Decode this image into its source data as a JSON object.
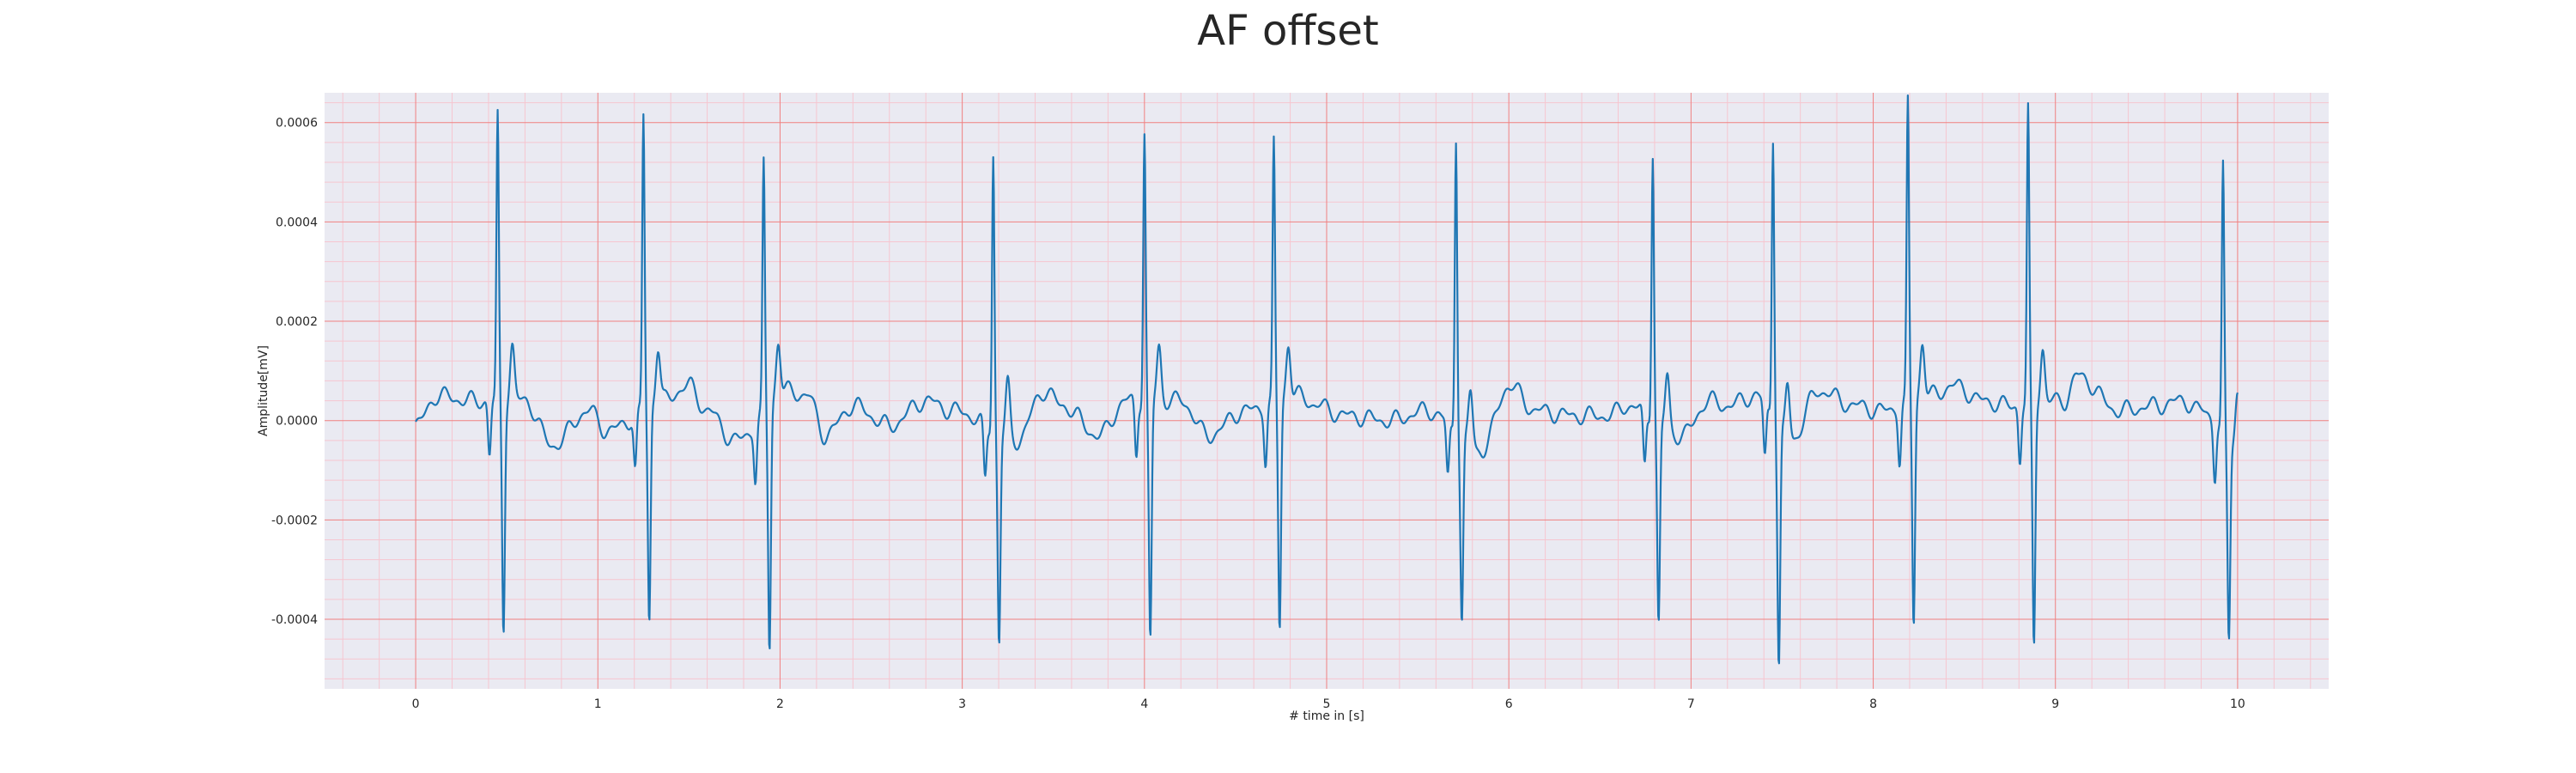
{
  "chart_data": {
    "type": "line",
    "title": "AF offset",
    "xlabel": "# time in [s]",
    "ylabel": "Amplitude[mV]",
    "xlim": [
      -0.5,
      10.5
    ],
    "ylim": [
      -0.00054,
      0.00066
    ],
    "x_ticks": [
      0,
      1,
      2,
      3,
      4,
      5,
      6,
      7,
      8,
      9,
      10
    ],
    "x_tick_labels": [
      "0",
      "1",
      "2",
      "3",
      "4",
      "5",
      "6",
      "7",
      "8",
      "9",
      "10"
    ],
    "y_ticks": [
      -0.0004,
      -0.0002,
      0.0,
      0.0002,
      0.0004,
      0.0006
    ],
    "y_tick_labels": [
      "-0.0004",
      "-0.0002",
      "0.0000",
      "0.0002",
      "0.0004",
      "0.0006"
    ],
    "grid": true,
    "minor_grid": true,
    "colors": {
      "line": "#1f77b4",
      "plot_background": "#eaeaf2",
      "major_grid": "#f08080",
      "minor_grid": "#f6c6d0"
    },
    "series": [
      {
        "name": "",
        "beats": [
          {
            "t": 0.45,
            "r": 0.00057,
            "s": -0.00046
          },
          {
            "t": 1.25,
            "r": 0.00059,
            "s": -0.00044
          },
          {
            "t": 1.91,
            "r": 0.0005,
            "s": -0.00049
          },
          {
            "t": 3.17,
            "r": 0.00056,
            "s": -0.00042
          },
          {
            "t": 4.0,
            "r": 0.00054,
            "s": -0.00049
          },
          {
            "t": 4.71,
            "r": 0.00052,
            "s": -0.00046
          },
          {
            "t": 5.71,
            "r": 0.0006,
            "s": -0.00037
          },
          {
            "t": 6.79,
            "r": 0.00054,
            "s": -0.00041
          },
          {
            "t": 7.45,
            "r": 0.00057,
            "s": -0.00048
          },
          {
            "t": 8.19,
            "r": 0.0006,
            "s": -0.00045
          },
          {
            "t": 8.85,
            "r": 0.00059,
            "s": -0.00049
          },
          {
            "t": 9.92,
            "r": 0.00053,
            "s": -0.0004
          }
        ],
        "baseline": {
          "x": [
            0.0,
            0.12,
            0.3,
            0.6,
            0.75,
            0.95,
            1.05,
            1.35,
            1.5,
            1.6,
            1.75,
            2.05,
            2.15,
            2.25,
            2.4,
            2.6,
            2.8,
            2.95,
            3.3,
            3.45,
            3.55,
            3.75,
            3.9,
            4.2,
            4.35,
            4.55,
            4.85,
            4.95,
            5.1,
            5.35,
            5.55,
            5.85,
            6.0,
            6.15,
            6.35,
            6.55,
            6.65,
            6.95,
            7.1,
            7.2,
            7.35,
            7.55,
            7.7,
            7.9,
            8.05,
            8.3,
            8.45,
            8.6,
            8.75,
            9.05,
            9.12,
            9.35,
            9.55,
            9.7,
            9.8,
            10.0
          ],
          "y": [
            -1e-05,
            5e-05,
            4e-05,
            4e-05,
            -5e-05,
            2e-05,
            -2e-05,
            4e-05,
            7e-05,
            2e-05,
            -4e-05,
            6e-05,
            5e-05,
            -3e-05,
            3e-05,
            -1e-05,
            4e-05,
            2e-05,
            -4e-05,
            6e-05,
            3e-05,
            -3e-05,
            4e-05,
            4e-05,
            -3e-05,
            2e-05,
            5e-05,
            3e-05,
            1e-05,
            0.0,
            2e-05,
            -6e-05,
            7e-05,
            2e-05,
            1e-05,
            1e-05,
            3e-05,
            -3e-05,
            4e-05,
            3e-05,
            5e-05,
            -4e-05,
            6e-05,
            3e-05,
            2e-05,
            5e-05,
            7e-05,
            4e-05,
            3e-05,
            4e-05,
            9e-05,
            2e-05,
            3e-05,
            4e-05,
            2e-05,
            -5e-05
          ]
        }
      }
    ]
  }
}
